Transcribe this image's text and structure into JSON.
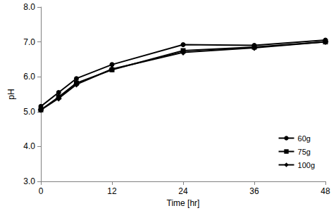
{
  "chart_data": {
    "type": "line",
    "x_label": "Time [hr]",
    "y_label": "pH",
    "xlim": [
      0,
      48
    ],
    "xticks": [
      0,
      12,
      24,
      36,
      48
    ],
    "ylim": [
      3,
      8
    ],
    "yticks": [
      {
        "value": 3,
        "label": "3.0"
      },
      {
        "value": 4,
        "label": "4.0"
      },
      {
        "value": 5,
        "label": "5.0"
      },
      {
        "value": 6,
        "label": "6.0"
      },
      {
        "value": 7,
        "label": "7.0"
      },
      {
        "value": 8,
        "label": "8.0"
      }
    ],
    "grid": false,
    "legend": "lower right",
    "line_style": "solid",
    "x": [
      0,
      3,
      6,
      12,
      24,
      36,
      48
    ],
    "series": [
      {
        "name": "60g",
        "color": "#000000",
        "marker": "circle",
        "values": [
          5.15,
          5.55,
          5.95,
          6.35,
          6.92,
          6.9,
          7.05
        ]
      },
      {
        "name": "75g",
        "color": "#000000",
        "marker": "square",
        "values": [
          5.05,
          5.42,
          5.82,
          6.2,
          6.75,
          6.85,
          7.0
        ]
      },
      {
        "name": "100g",
        "color": "#000000",
        "marker": "diamond",
        "values": [
          5.05,
          5.38,
          5.78,
          6.22,
          6.7,
          6.83,
          7.0
        ]
      }
    ]
  }
}
